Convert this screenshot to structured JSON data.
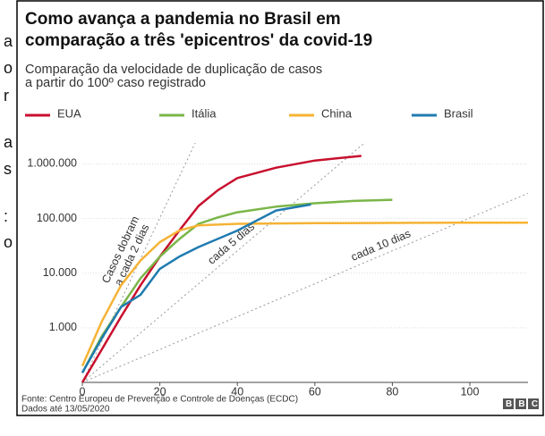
{
  "background_text": [
    "a",
    "o",
    "r",
    "a",
    "s",
    ":",
    "o"
  ],
  "chart_data": {
    "type": "line",
    "title": [
      "Como avança a pandemia no Brasil em",
      "comparação a três 'epicentros' da covid-19"
    ],
    "subtitle": [
      "Comparação da velocidade de duplicação de casos",
      "a partir do 100º caso registrado"
    ],
    "source": [
      "Fonte: Centro Europeu de Prevenção e Controle de Doenças (ECDC)",
      "Dados até 13/05/2020"
    ],
    "logo": "BBC",
    "log_scale": true,
    "grid": true,
    "legend": "top",
    "xlim": [
      0,
      115
    ],
    "xticks": [
      0,
      20,
      40,
      60,
      80,
      100
    ],
    "ylim": [
      100,
      2000000
    ],
    "yticks": [
      {
        "value": 1000,
        "label": "1.000"
      },
      {
        "value": 10000,
        "label": "10.000"
      },
      {
        "value": 100000,
        "label": "100.000"
      },
      {
        "value": 1000000,
        "label": "1.000.000"
      }
    ],
    "series": [
      {
        "name": "EUA",
        "color": "#c8102e",
        "x": [
          0,
          5,
          10,
          15,
          20,
          25,
          30,
          35,
          40,
          50,
          60,
          72
        ],
        "values": [
          100,
          400,
          1600,
          6000,
          20000,
          60000,
          170000,
          330000,
          550000,
          850000,
          1150000,
          1400000
        ]
      },
      {
        "name": "Itália",
        "color": "#7ab648",
        "x": [
          0,
          5,
          10,
          15,
          20,
          25,
          30,
          35,
          40,
          50,
          60,
          70,
          80
        ],
        "values": [
          150,
          700,
          2400,
          8000,
          20000,
          42000,
          80000,
          105000,
          130000,
          165000,
          190000,
          210000,
          220000
        ]
      },
      {
        "name": "China",
        "color": "#f5b335",
        "x": [
          0,
          5,
          10,
          15,
          20,
          25,
          30,
          40,
          60,
          80,
          100,
          115
        ],
        "values": [
          200,
          1300,
          6000,
          17000,
          37000,
          60000,
          75000,
          80000,
          82000,
          83000,
          84000,
          84000
        ]
      },
      {
        "name": "Brasil",
        "color": "#1f7bb0",
        "x": [
          0,
          5,
          10,
          15,
          20,
          25,
          30,
          40,
          50,
          59
        ],
        "values": [
          150,
          640,
          2400,
          4000,
          12000,
          20000,
          30000,
          60000,
          140000,
          180000
        ]
      }
    ],
    "reference_lines": [
      {
        "label": [
          "Casos dobram",
          "a cada 2 dias"
        ],
        "doubling_days": 2
      },
      {
        "label": [
          "cada 5 dias"
        ],
        "doubling_days": 5
      },
      {
        "label": [
          "cada 10 dias"
        ],
        "doubling_days": 10
      }
    ]
  }
}
